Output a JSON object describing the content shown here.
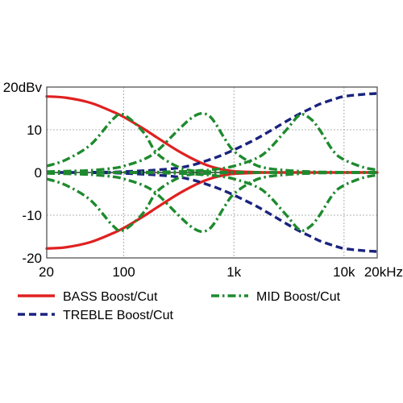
{
  "chart_data": {
    "type": "line",
    "title": "",
    "xlabel": "",
    "ylabel": "",
    "x_scale": "log",
    "xlim": [
      20,
      20000
    ],
    "ylim": [
      -20,
      20
    ],
    "grid": true,
    "legend_position": "bottom",
    "x_ticks": [
      {
        "value": 20,
        "label": "20"
      },
      {
        "value": 100,
        "label": "100"
      },
      {
        "value": 1000,
        "label": "1k"
      },
      {
        "value": 10000,
        "label": "10k"
      },
      {
        "value": 20000,
        "label": "20kHz"
      }
    ],
    "y_ticks": [
      {
        "value": 20,
        "label": "20dBv"
      },
      {
        "value": 10,
        "label": "10"
      },
      {
        "value": 0,
        "label": "0"
      },
      {
        "value": -10,
        "label": "-10"
      },
      {
        "value": -20,
        "label": "-20"
      }
    ],
    "x": [
      20,
      30,
      50,
      80,
      100,
      150,
      200,
      300,
      400,
      500,
      600,
      700,
      800,
      1000,
      1500,
      2000,
      3000,
      4000,
      5000,
      6000,
      8000,
      10000,
      15000,
      20000
    ],
    "series": [
      {
        "name": "BASS Boost/Cut",
        "color": "#e02020",
        "style": "solid",
        "values": [
          17.8,
          17.5,
          16.3,
          14.2,
          13,
          10.3,
          8.2,
          5.3,
          3.5,
          2.3,
          1.5,
          1,
          0.7,
          0.3,
          0.1,
          0,
          0,
          0,
          0,
          0,
          0,
          0,
          0,
          0
        ]
      },
      {
        "name": "BASS Boost/Cut",
        "color": "#e02020",
        "style": "solid",
        "values": [
          -17.8,
          -17.5,
          -16.3,
          -14.2,
          -13,
          -10.3,
          -8.2,
          -5.3,
          -3.5,
          -2.3,
          -1.5,
          -1,
          -0.7,
          -0.3,
          -0.1,
          0,
          0,
          0,
          0,
          0,
          0,
          0,
          0,
          0
        ]
      },
      {
        "name": "TREBLE Boost/Cut",
        "color": "#1a237e",
        "style": "dash",
        "values": [
          0,
          0,
          0.05,
          0.1,
          0.2,
          0.4,
          0.6,
          1,
          1.6,
          2.3,
          3,
          3.6,
          4.2,
          5.3,
          7.5,
          9.3,
          12,
          13.8,
          15,
          16,
          17.1,
          17.8,
          18.3,
          18.5
        ]
      },
      {
        "name": "TREBLE Boost/Cut",
        "color": "#1a237e",
        "style": "dash",
        "values": [
          0,
          0,
          -0.05,
          -0.1,
          -0.2,
          -0.4,
          -0.6,
          -1,
          -1.6,
          -2.3,
          -3,
          -3.6,
          -4.2,
          -5.3,
          -7.5,
          -9.3,
          -12,
          -13.8,
          -15,
          -16,
          -17.1,
          -17.8,
          -18.3,
          -18.5
        ]
      },
      {
        "name": "MID Boost/Cut",
        "color": "#1e8a2e",
        "style": "dashdot",
        "values": [
          1.5,
          3,
          6.5,
          12.5,
          13.5,
          9.5,
          4.5,
          1.5,
          0.5,
          0.3,
          0.2,
          0.2,
          0.1,
          0.1,
          0,
          0,
          0,
          0,
          0,
          0,
          0,
          0,
          0,
          0
        ]
      },
      {
        "name": "MID Boost/Cut",
        "color": "#1e8a2e",
        "style": "dashdot",
        "values": [
          -1.5,
          -3,
          -6.5,
          -12.5,
          -13.5,
          -9.5,
          -4.5,
          -1.5,
          -0.5,
          -0.3,
          -0.2,
          -0.2,
          -0.1,
          -0.1,
          0,
          0,
          0,
          0,
          0,
          0,
          0,
          0,
          0,
          0
        ]
      },
      {
        "name": "MID Boost/Cut",
        "color": "#1e8a2e",
        "style": "dashdot",
        "values": [
          0.2,
          0.3,
          0.5,
          1,
          1.5,
          3,
          5,
          9.5,
          12.5,
          13.8,
          13.2,
          11,
          8.5,
          5,
          2,
          1,
          0.5,
          0.3,
          0.2,
          0.1,
          0.1,
          0,
          0,
          0
        ]
      },
      {
        "name": "MID Boost/Cut",
        "color": "#1e8a2e",
        "style": "dashdot",
        "values": [
          -0.2,
          -0.3,
          -0.5,
          -1,
          -1.5,
          -3,
          -5,
          -9.5,
          -12.5,
          -13.8,
          -13.2,
          -11,
          -8.5,
          -5,
          -2,
          -1,
          -0.5,
          -0.3,
          -0.2,
          -0.1,
          -0.1,
          0,
          0,
          0
        ]
      },
      {
        "name": "MID Boost/Cut",
        "color": "#1e8a2e",
        "style": "dashdot",
        "values": [
          0,
          0,
          0,
          0,
          0,
          0.1,
          0.1,
          0.2,
          0.3,
          0.5,
          0.6,
          0.8,
          1,
          1.5,
          3,
          5,
          10,
          13.5,
          12.5,
          10,
          5,
          3,
          1.2,
          0.6
        ]
      },
      {
        "name": "MID Boost/Cut",
        "color": "#1e8a2e",
        "style": "dashdot",
        "values": [
          0,
          0,
          0,
          0,
          0,
          -0.1,
          -0.1,
          -0.2,
          -0.3,
          -0.5,
          -0.6,
          -0.8,
          -1,
          -1.5,
          -3,
          -5,
          -10,
          -13.5,
          -12.5,
          -10,
          -5,
          -3,
          -1.2,
          -0.6
        ]
      }
    ],
    "legend": [
      {
        "label": "BASS Boost/Cut",
        "color": "#e02020",
        "style": "solid"
      },
      {
        "label": "MID Boost/Cut",
        "color": "#1e8a2e",
        "style": "dashdot"
      },
      {
        "label": "TREBLE Boost/Cut",
        "color": "#1a237e",
        "style": "dash"
      }
    ]
  }
}
